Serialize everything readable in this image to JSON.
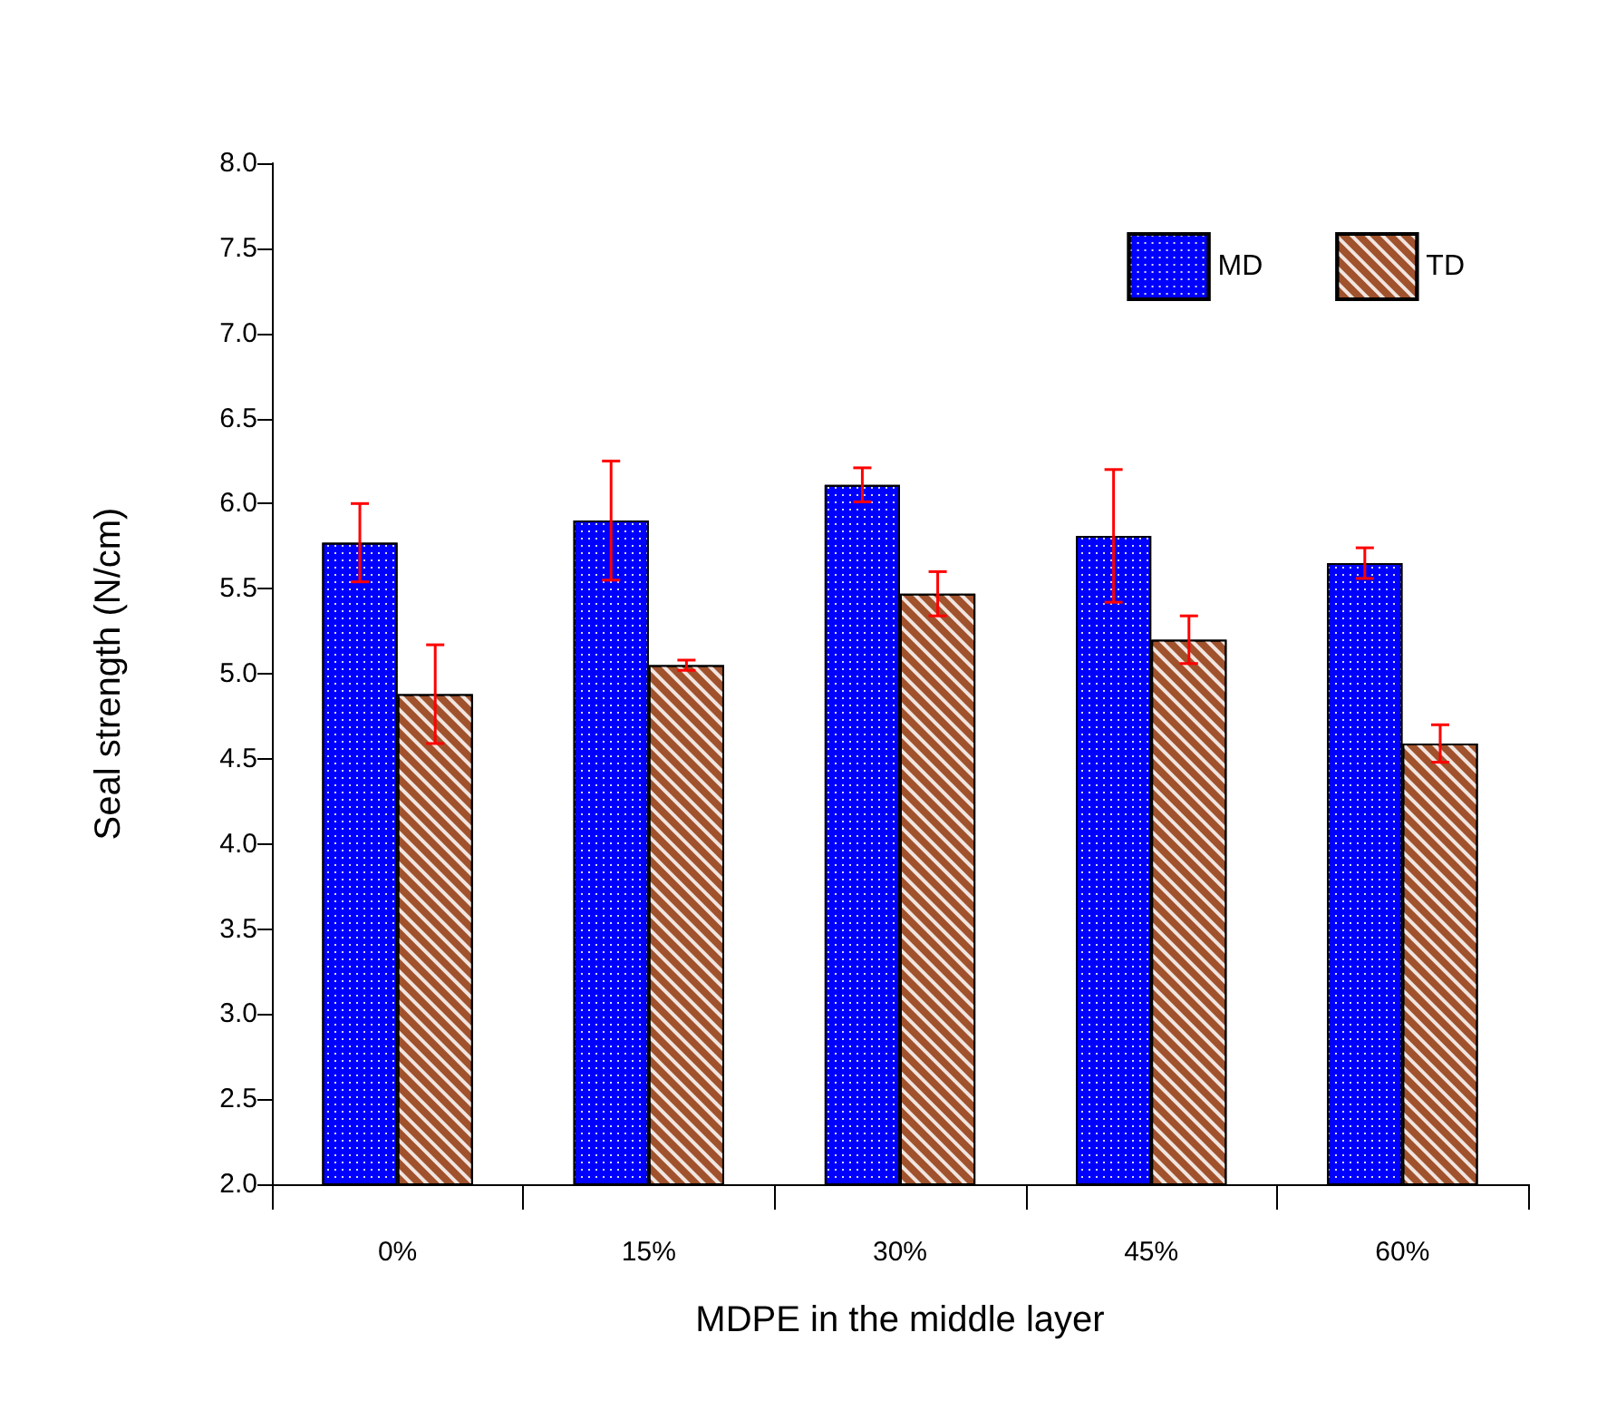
{
  "chart_data": {
    "type": "bar",
    "xlabel": "MDPE in the middle layer",
    "ylabel": "Seal strength (N/cm)",
    "categories": [
      "0%",
      "15%",
      "30%",
      "45%",
      "60%"
    ],
    "series": [
      {
        "name": "MD",
        "color": "#0000ff",
        "values": [
          5.77,
          5.9,
          6.11,
          5.81,
          5.65
        ],
        "errors": [
          0.23,
          0.35,
          0.1,
          0.39,
          0.09
        ]
      },
      {
        "name": "TD",
        "color": "#a0522d",
        "values": [
          4.88,
          5.05,
          5.47,
          5.2,
          4.59
        ],
        "errors": [
          0.29,
          0.03,
          0.13,
          0.14,
          0.11
        ]
      }
    ],
    "ylim": [
      2,
      8
    ],
    "yticks": [
      {
        "value": 2,
        "label": "2.0"
      },
      {
        "value": 2.5,
        "label": "2.5"
      },
      {
        "value": 3,
        "label": "3.0"
      },
      {
        "value": 3.5,
        "label": "3.5"
      },
      {
        "value": 4,
        "label": "4.0"
      },
      {
        "value": 4.5,
        "label": "4.5"
      },
      {
        "value": 5,
        "label": "5.0"
      },
      {
        "value": 5.5,
        "label": "5.5"
      },
      {
        "value": 6,
        "label": "6.0"
      },
      {
        "value": 6.5,
        "label": "6.5"
      },
      {
        "value": 7,
        "label": "7.0"
      },
      {
        "value": 7.5,
        "label": "7.5"
      },
      {
        "value": 8,
        "label": "8.0"
      }
    ],
    "grid": false,
    "legend": "top right"
  }
}
